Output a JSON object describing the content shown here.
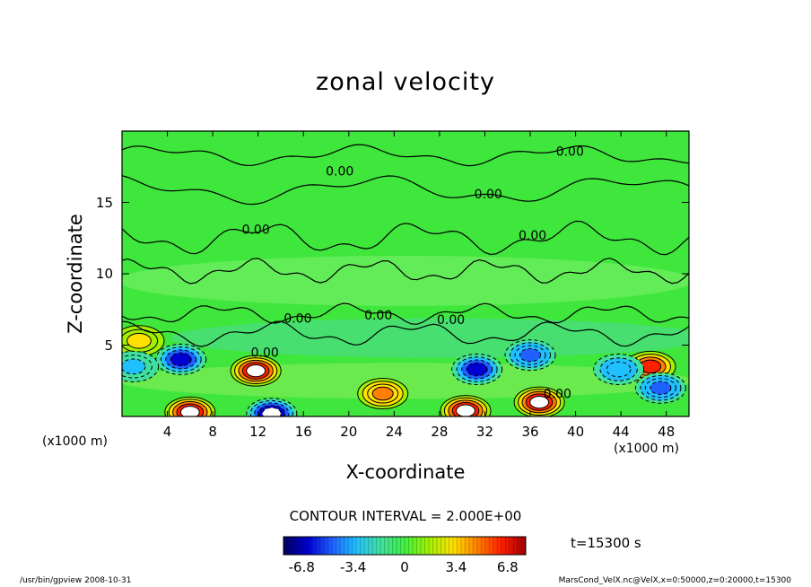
{
  "chart_data": {
    "type": "heatmap",
    "title": "zonal velocity",
    "xlabel": "X-coordinate",
    "ylabel": "Z-coordinate",
    "x_unit_label": "(x1000 m)",
    "xlim": [
      0,
      50
    ],
    "ylim": [
      0,
      20
    ],
    "x_ticks": [
      "4",
      "8",
      "12",
      "16",
      "20",
      "24",
      "28",
      "32",
      "36",
      "40",
      "44",
      "48"
    ],
    "y_ticks": [
      "5",
      "10",
      "15"
    ],
    "contour_labels": [
      {
        "x": 39.5,
        "y": 18.6,
        "text": "0.00"
      },
      {
        "x": 19.2,
        "y": 17.2,
        "text": "0.00"
      },
      {
        "x": 32.3,
        "y": 15.6,
        "text": "0.00"
      },
      {
        "x": 36.2,
        "y": 12.7,
        "text": "0.00"
      },
      {
        "x": 11.8,
        "y": 13.1,
        "text": "0.00"
      },
      {
        "x": 15.5,
        "y": 6.9,
        "text": "0.00"
      },
      {
        "x": 22.6,
        "y": 7.1,
        "text": "0.00"
      },
      {
        "x": 29.0,
        "y": 6.8,
        "text": "0.00"
      },
      {
        "x": 12.6,
        "y": 4.5,
        "text": "0.00"
      },
      {
        "x": 38.4,
        "y": 1.6,
        "text": "0.00"
      }
    ],
    "features": [
      {
        "kind": "low",
        "x": 5.2,
        "y": 4.0,
        "value": -6.0
      },
      {
        "kind": "high",
        "x": 11.8,
        "y": 3.2,
        "value": 8.0
      },
      {
        "kind": "high",
        "x": 6.0,
        "y": 0.3,
        "value": 7.0
      },
      {
        "kind": "low",
        "x": 13.2,
        "y": 0.2,
        "value": -8.0
      },
      {
        "kind": "high",
        "x": 23.0,
        "y": 1.6,
        "value": 5.0
      },
      {
        "kind": "low",
        "x": 31.3,
        "y": 3.3,
        "value": -6.0
      },
      {
        "kind": "high",
        "x": 30.3,
        "y": 0.4,
        "value": 7.0
      },
      {
        "kind": "low",
        "x": 36.0,
        "y": 4.3,
        "value": -5.0
      },
      {
        "kind": "high",
        "x": 36.8,
        "y": 1.0,
        "value": 7.0
      },
      {
        "kind": "high",
        "x": 46.6,
        "y": 3.5,
        "value": 6.0
      },
      {
        "kind": "low",
        "x": 43.8,
        "y": 3.3,
        "value": -4.0
      },
      {
        "kind": "low",
        "x": 47.5,
        "y": 2.0,
        "value": -5.0
      },
      {
        "kind": "high",
        "x": 1.5,
        "y": 5.3,
        "value": 3.0
      },
      {
        "kind": "low",
        "x": 1.0,
        "y": 3.5,
        "value": -3.0
      }
    ],
    "colorbar": {
      "min": -8,
      "max": 8,
      "ticks": [
        "-6.8",
        "-3.4",
        "0",
        "3.4",
        "6.8"
      ],
      "colors": [
        "#000060",
        "#0000d0",
        "#2060ff",
        "#20c0ff",
        "#40e0a0",
        "#40f040",
        "#a0f000",
        "#ffe000",
        "#ff8000",
        "#ff2000",
        "#a00000"
      ]
    },
    "contour_interval": "CONTOUR INTERVAL = 2.000E+00",
    "time_label": "t=15300 s"
  },
  "footer": {
    "left": "/usr/bin/gpview   2008-10-31",
    "right": "MarsCond_VelX.nc@VelX,x=0:50000,z=0:20000,t=15300"
  }
}
